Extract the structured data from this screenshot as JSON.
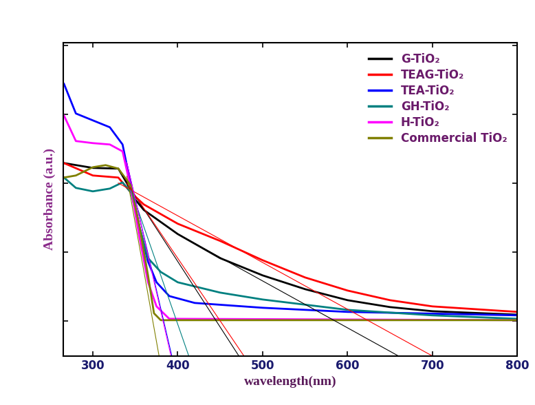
{
  "chart_data": {
    "type": "line",
    "x_label": "wavelength(nm)",
    "y_label": "Absorbance (a.u.)",
    "xlim": [
      265,
      800
    ],
    "xticks": [
      300,
      400,
      500,
      600,
      700,
      800
    ],
    "ylim": [
      -0.51,
      4.04
    ],
    "yticks": [
      0,
      1,
      2,
      3,
      4
    ],
    "tick_labels": "x",
    "grid": false,
    "legend": "upper right",
    "series": [
      {
        "name": "G-TiO₂",
        "color": "#000000",
        "x": [
          266,
          300,
          330,
          340,
          350,
          360,
          400,
          450,
          500,
          550,
          600,
          650,
          700,
          800
        ],
        "values": [
          2.29,
          2.22,
          2.21,
          2.0,
          1.76,
          1.61,
          1.26,
          0.91,
          0.66,
          0.46,
          0.3,
          0.2,
          0.14,
          0.09
        ]
      },
      {
        "name": "TEAG-TiO₂",
        "color": "#ff0000",
        "x": [
          266,
          300,
          330,
          345,
          360,
          400,
          450,
          500,
          550,
          600,
          650,
          700,
          800
        ],
        "values": [
          2.29,
          2.11,
          2.08,
          1.86,
          1.69,
          1.41,
          1.16,
          0.88,
          0.63,
          0.44,
          0.3,
          0.21,
          0.13
        ]
      },
      {
        "name": "TEA-TiO₂",
        "color": "#0000ff",
        "x": [
          266,
          280,
          300,
          320,
          335,
          345,
          355,
          365,
          375,
          390,
          420,
          500,
          600,
          800
        ],
        "values": [
          3.44,
          3.01,
          2.91,
          2.81,
          2.56,
          1.96,
          1.36,
          0.86,
          0.56,
          0.36,
          0.26,
          0.19,
          0.13,
          0.08
        ]
      },
      {
        "name": "GH-TiO₂",
        "color": "#008080",
        "x": [
          266,
          280,
          300,
          320,
          335,
          345,
          355,
          365,
          380,
          400,
          450,
          500,
          600,
          700,
          800
        ],
        "values": [
          2.08,
          1.93,
          1.88,
          1.92,
          2.01,
          1.86,
          1.36,
          0.91,
          0.71,
          0.56,
          0.41,
          0.31,
          0.16,
          0.08,
          0.03
        ]
      },
      {
        "name": "H-TiO₂",
        "color": "#ff00ff",
        "x": [
          266,
          280,
          300,
          320,
          335,
          345,
          355,
          365,
          375,
          390,
          800
        ],
        "values": [
          2.98,
          2.61,
          2.58,
          2.56,
          2.46,
          1.91,
          1.21,
          0.56,
          0.21,
          0.03,
          0.01
        ]
      },
      {
        "name": "Commercial TiO₂",
        "color": "#808000",
        "x": [
          266,
          280,
          300,
          315,
          330,
          345,
          355,
          365,
          372,
          380,
          800
        ],
        "values": [
          2.08,
          2.11,
          2.23,
          2.26,
          2.21,
          1.96,
          1.36,
          0.66,
          0.11,
          0.01,
          0.01
        ]
      }
    ],
    "tangents": [
      {
        "color": "#000000",
        "x": [
          400,
          660
        ],
        "values": [
          1.26,
          -0.51
        ]
      },
      {
        "color": "#000000",
        "x": [
          335,
          472
        ],
        "values": [
          2.1,
          -0.51
        ]
      },
      {
        "color": "#ff0000",
        "x": [
          330,
          700
        ],
        "values": [
          2.0,
          -0.51
        ]
      },
      {
        "color": "#ff0000",
        "x": [
          340,
          478
        ],
        "values": [
          2.0,
          -0.51
        ]
      },
      {
        "color": "#008080",
        "x": [
          345,
          413
        ],
        "values": [
          1.9,
          -0.51
        ]
      },
      {
        "color": "#0000ff",
        "x": [
          340,
          393
        ],
        "values": [
          2.3,
          -0.51
        ]
      },
      {
        "color": "#ff00ff",
        "x": [
          340,
          392
        ],
        "values": [
          2.3,
          -0.51
        ]
      },
      {
        "color": "#808000",
        "x": [
          340,
          378
        ],
        "values": [
          2.1,
          -0.51
        ]
      }
    ]
  }
}
